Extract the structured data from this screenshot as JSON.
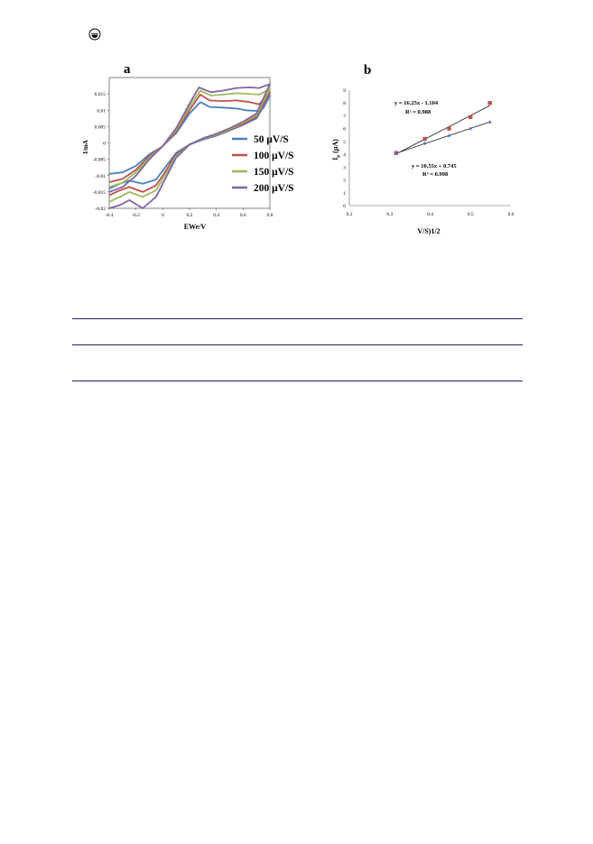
{
  "page": {
    "marker_icon": "circle-dot-icon",
    "rule_color": "#1f1f5a"
  },
  "chart_data": [
    {
      "panel_label": "a",
      "type": "line",
      "xlabel": "EWe/V",
      "ylabel": "I/mA",
      "xlim": [
        -0.4,
        0.8
      ],
      "ylim": [
        -0.02,
        0.02
      ],
      "xticks": [
        "-0.4",
        "-0.2",
        "0",
        "0.2",
        "0.4",
        "0.6",
        "0.8"
      ],
      "yticks": [
        "0.015",
        "0.01",
        "0.005",
        "0",
        "-0.005",
        "-0.01",
        "-0.015",
        "-0.02"
      ],
      "legend_position": "right-center",
      "series": [
        {
          "name": "50 μV/S",
          "color": "#4a7ec4",
          "forward": [
            [
              -0.4,
              -0.0095
            ],
            [
              -0.3,
              -0.009
            ],
            [
              -0.2,
              -0.007
            ],
            [
              -0.1,
              -0.0035
            ],
            [
              0.0,
              -0.001
            ],
            [
              0.1,
              0.003
            ],
            [
              0.2,
              0.009
            ],
            [
              0.28,
              0.0125
            ],
            [
              0.35,
              0.011
            ],
            [
              0.45,
              0.0108
            ],
            [
              0.55,
              0.0105
            ],
            [
              0.62,
              0.01
            ],
            [
              0.7,
              0.0098
            ],
            [
              0.75,
              0.0105
            ],
            [
              0.8,
              0.0145
            ]
          ],
          "reverse": [
            [
              0.8,
              0.0145
            ],
            [
              0.7,
              0.0075
            ],
            [
              0.6,
              0.0055
            ],
            [
              0.5,
              0.0038
            ],
            [
              0.4,
              0.0022
            ],
            [
              0.3,
              0.001
            ],
            [
              0.2,
              -0.0005
            ],
            [
              0.1,
              -0.003
            ],
            [
              0.0,
              -0.0085
            ],
            [
              -0.05,
              -0.0112
            ],
            [
              -0.15,
              -0.0125
            ],
            [
              -0.25,
              -0.0115
            ],
            [
              -0.32,
              -0.0125
            ],
            [
              -0.4,
              -0.014
            ]
          ]
        },
        {
          "name": "100 μV/S",
          "color": "#c0504d",
          "forward": [
            [
              -0.4,
              -0.012
            ],
            [
              -0.3,
              -0.011
            ],
            [
              -0.2,
              -0.0082
            ],
            [
              -0.1,
              -0.004
            ],
            [
              0.0,
              -0.001
            ],
            [
              0.1,
              0.0035
            ],
            [
              0.2,
              0.01
            ],
            [
              0.28,
              0.0148
            ],
            [
              0.35,
              0.013
            ],
            [
              0.45,
              0.0128
            ],
            [
              0.55,
              0.013
            ],
            [
              0.65,
              0.0125
            ],
            [
              0.72,
              0.0118
            ],
            [
              0.8,
              0.0155
            ]
          ],
          "reverse": [
            [
              0.8,
              0.0155
            ],
            [
              0.7,
              0.008
            ],
            [
              0.6,
              0.0058
            ],
            [
              0.5,
              0.004
            ],
            [
              0.4,
              0.0024
            ],
            [
              0.3,
              0.0012
            ],
            [
              0.2,
              -0.0005
            ],
            [
              0.1,
              -0.0035
            ],
            [
              0.0,
              -0.01
            ],
            [
              -0.05,
              -0.013
            ],
            [
              -0.15,
              -0.015
            ],
            [
              -0.25,
              -0.0135
            ],
            [
              -0.32,
              -0.0145
            ],
            [
              -0.4,
              -0.016
            ]
          ]
        },
        {
          "name": "150 μV/S",
          "color": "#9bbb59",
          "forward": [
            [
              -0.4,
              -0.0135
            ],
            [
              -0.3,
              -0.0122
            ],
            [
              -0.2,
              -0.009
            ],
            [
              -0.1,
              -0.0045
            ],
            [
              0.0,
              -0.001
            ],
            [
              0.1,
              0.004
            ],
            [
              0.2,
              0.011
            ],
            [
              0.28,
              0.016
            ],
            [
              0.36,
              0.0145
            ],
            [
              0.45,
              0.0148
            ],
            [
              0.55,
              0.0152
            ],
            [
              0.65,
              0.015
            ],
            [
              0.72,
              0.0148
            ],
            [
              0.8,
              0.0165
            ]
          ],
          "reverse": [
            [
              0.8,
              0.0165
            ],
            [
              0.7,
              0.0085
            ],
            [
              0.6,
              0.0062
            ],
            [
              0.5,
              0.0042
            ],
            [
              0.4,
              0.0026
            ],
            [
              0.3,
              0.0013
            ],
            [
              0.2,
              -0.0005
            ],
            [
              0.1,
              -0.004
            ],
            [
              0.0,
              -0.011
            ],
            [
              -0.05,
              -0.0145
            ],
            [
              -0.15,
              -0.0165
            ],
            [
              -0.25,
              -0.015
            ],
            [
              -0.32,
              -0.0165
            ],
            [
              -0.4,
              -0.018
            ]
          ]
        },
        {
          "name": "200 μV/S",
          "color": "#8064a2",
          "forward": [
            [
              -0.4,
              -0.015
            ],
            [
              -0.3,
              -0.0135
            ],
            [
              -0.2,
              -0.01
            ],
            [
              -0.1,
              -0.005
            ],
            [
              0.0,
              -0.001
            ],
            [
              0.1,
              0.0045
            ],
            [
              0.2,
              0.012
            ],
            [
              0.27,
              0.017
            ],
            [
              0.36,
              0.0155
            ],
            [
              0.45,
              0.016
            ],
            [
              0.55,
              0.0168
            ],
            [
              0.65,
              0.017
            ],
            [
              0.72,
              0.0168
            ],
            [
              0.8,
              0.018
            ]
          ],
          "reverse": [
            [
              0.8,
              0.018
            ],
            [
              0.7,
              0.009
            ],
            [
              0.6,
              0.0065
            ],
            [
              0.5,
              0.0045
            ],
            [
              0.4,
              0.0028
            ],
            [
              0.3,
              0.0014
            ],
            [
              0.2,
              -0.0005
            ],
            [
              0.1,
              -0.0045
            ],
            [
              0.0,
              -0.0125
            ],
            [
              -0.05,
              -0.0165
            ],
            [
              -0.15,
              -0.02
            ],
            [
              -0.25,
              -0.0175
            ],
            [
              -0.32,
              -0.019
            ],
            [
              -0.4,
              -0.02
            ]
          ]
        }
      ]
    },
    {
      "panel_label": "b",
      "type": "scatter",
      "xlabel": "V/S)1/2",
      "ylabel": "Ip (μA)",
      "xlim": [
        0.2,
        0.6
      ],
      "ylim": [
        0,
        9
      ],
      "xticks": [
        "0.2",
        "0.3",
        "0.4",
        "0.5",
        "0.6"
      ],
      "yticks": [
        "9",
        "8",
        "7",
        "6",
        "5",
        "4",
        "3",
        "2",
        "1",
        "0"
      ],
      "series": [
        {
          "color": "#c0504d",
          "points": [
            [
              0.316,
              4.1
            ],
            [
              0.387,
              5.2
            ],
            [
              0.447,
              6.0
            ],
            [
              0.5,
              6.9
            ],
            [
              0.548,
              8.0
            ]
          ],
          "trend_equation": "y = 16.25x - 1.104",
          "trend_r2": "R² = 0.988",
          "slope": 16.25,
          "intercept": -1.104
        },
        {
          "color": "#4a7ec4",
          "points": [
            [
              0.316,
              4.1
            ],
            [
              0.387,
              4.85
            ],
            [
              0.447,
              5.45
            ],
            [
              0.5,
              6.0
            ],
            [
              0.548,
              6.5
            ]
          ],
          "trend_equation": "y = 10.55x + 0.745",
          "trend_r2": "R² = 0.998",
          "slope": 10.55,
          "intercept": 0.745
        }
      ]
    }
  ]
}
